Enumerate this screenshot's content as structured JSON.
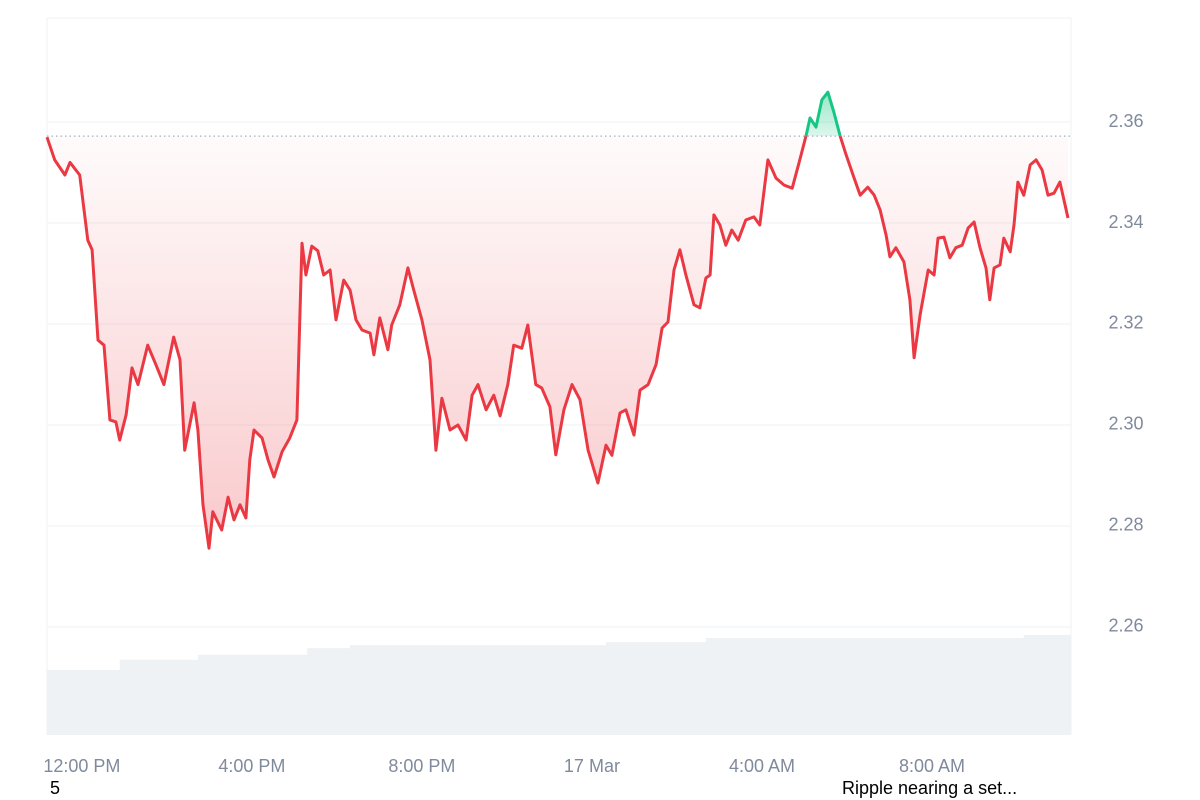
{
  "chart_data": {
    "type": "line",
    "x": [
      -0.82,
      -0.64,
      -0.4,
      -0.28,
      -0.05,
      0.14,
      0.24,
      0.38,
      0.52,
      0.66,
      0.8,
      0.89,
      1.04,
      1.18,
      1.32,
      1.55,
      1.74,
      1.93,
      2.16,
      2.31,
      2.42,
      2.64,
      2.73,
      2.85,
      2.99,
      3.08,
      3.29,
      3.44,
      3.58,
      3.72,
      3.86,
      3.95,
      4.05,
      4.24,
      4.38,
      4.52,
      4.71,
      4.89,
      5.06,
      5.18,
      5.27,
      5.41,
      5.55,
      5.69,
      5.84,
      5.98,
      6.16,
      6.31,
      6.45,
      6.59,
      6.78,
      6.87,
      7.01,
      7.2,
      7.29,
      7.48,
      7.67,
      7.81,
      8.0,
      8.19,
      8.33,
      8.47,
      8.66,
      8.85,
      9.04,
      9.18,
      9.32,
      9.51,
      9.69,
      9.84,
      10.02,
      10.16,
      10.35,
      10.49,
      10.68,
      10.82,
      11.01,
      11.15,
      11.34,
      11.53,
      11.72,
      11.91,
      12.14,
      12.33,
      12.47,
      12.66,
      12.8,
      12.99,
      13.13,
      13.32,
      13.51,
      13.65,
      13.79,
      13.93,
      14.07,
      14.21,
      14.4,
      14.54,
      14.68,
      14.78,
      14.87,
      15.01,
      15.15,
      15.29,
      15.44,
      15.62,
      15.81,
      15.95,
      16.14,
      16.33,
      16.52,
      16.71,
      16.89,
      17.04,
      17.13,
      17.27,
      17.41,
      17.55,
      17.69,
      17.84,
      17.98,
      18.16,
      18.31,
      18.49,
      18.64,
      18.78,
      18.92,
      19.01,
      19.15,
      19.34,
      19.48,
      19.58,
      19.72,
      19.91,
      20.05,
      20.14,
      20.28,
      20.42,
      20.56,
      20.71,
      20.85,
      20.99,
      21.13,
      21.27,
      21.36,
      21.46,
      21.6,
      21.69,
      21.84,
      21.93,
      22.02,
      22.16,
      22.31,
      22.45,
      22.59,
      22.73,
      22.87,
      23.01,
      23.2
    ],
    "values": [
      2.357,
      2.3525,
      2.3495,
      2.352,
      2.3495,
      2.3366,
      2.3347,
      2.3168,
      2.3158,
      2.301,
      2.3006,
      2.297,
      2.302,
      2.3113,
      2.308,
      2.3158,
      2.312,
      2.308,
      2.3174,
      2.3129,
      2.295,
      2.3044,
      2.299,
      2.2842,
      2.2756,
      2.2828,
      2.2792,
      2.2857,
      2.2812,
      2.2842,
      2.2816,
      2.2931,
      2.299,
      2.2974,
      2.2931,
      2.2897,
      2.2947,
      2.2974,
      2.301,
      2.336,
      2.3297,
      2.3354,
      2.3345,
      2.3297,
      2.3307,
      2.3208,
      2.3287,
      2.3267,
      2.3208,
      2.3188,
      2.3182,
      2.3139,
      2.3212,
      2.3149,
      2.3198,
      2.3238,
      2.3311,
      2.3267,
      2.3208,
      2.3129,
      2.295,
      2.3053,
      2.299,
      2.3,
      2.297,
      2.3059,
      2.308,
      2.303,
      2.3059,
      2.3018,
      2.308,
      2.3158,
      2.3152,
      2.3198,
      2.308,
      2.3073,
      2.3036,
      2.2941,
      2.303,
      2.308,
      2.305,
      2.295,
      2.2885,
      2.296,
      2.294,
      2.3024,
      2.303,
      2.298,
      2.3069,
      2.308,
      2.312,
      2.3192,
      2.3204,
      2.3307,
      2.3347,
      2.3297,
      2.3238,
      2.3232,
      2.3291,
      2.3297,
      2.3416,
      2.3396,
      2.3356,
      2.3386,
      2.3366,
      2.3406,
      2.3412,
      2.3396,
      2.3525,
      2.3489,
      2.3475,
      2.3469,
      2.3525,
      2.3574,
      2.3608,
      2.359,
      2.3644,
      2.3659,
      2.362,
      2.3572,
      2.3535,
      2.3491,
      2.3455,
      2.3471,
      2.3455,
      2.3426,
      2.3376,
      2.3333,
      2.3351,
      2.3323,
      2.3248,
      2.3133,
      2.3218,
      2.3307,
      2.3297,
      2.337,
      2.3372,
      2.3331,
      2.3351,
      2.3356,
      2.339,
      2.3402,
      2.3351,
      2.3311,
      2.3248,
      2.3311,
      2.3317,
      2.337,
      2.3343,
      2.3396,
      2.3481,
      2.3455,
      2.3515,
      2.3525,
      2.3505,
      2.3455,
      2.3459,
      2.3481,
      2.341
    ],
    "reference_line": 2.3572,
    "color_below": "#ea3943",
    "color_above": "#16c784",
    "volume": {
      "x": [
        -0.82,
        0.89,
        2.73,
        5.3,
        6.31,
        12.33,
        14.68,
        22.16,
        23.27
      ],
      "values": [
        2.2515,
        2.2535,
        2.2545,
        2.2558,
        2.2564,
        2.257,
        2.2578,
        2.2584,
        2.2584
      ],
      "color": "#eff2f5"
    },
    "xlim": [
      -0.82,
      23.27
    ],
    "ylim": [
      2.2386,
      2.3806
    ],
    "xticks": [
      {
        "value": 0,
        "label": "12:00 PM"
      },
      {
        "value": 4,
        "label": "4:00 PM"
      },
      {
        "value": 8,
        "label": "8:00 PM"
      },
      {
        "value": 12,
        "label": "17 Mar"
      },
      {
        "value": 16,
        "label": "4:00 AM"
      },
      {
        "value": 20,
        "label": "8:00 AM"
      }
    ],
    "yticks": [
      2.26,
      {
        "value": 2.28,
        "label": "2.28"
      },
      {
        "value": 2.3,
        "label": "2.30"
      },
      {
        "value": 2.32,
        "label": "2.32"
      },
      {
        "value": 2.34,
        "label": "2.34"
      },
      {
        "value": 2.36,
        "label": "2.36"
      }
    ],
    "grid": true,
    "annotations": [
      "5",
      "Ripple nearing a set..."
    ]
  }
}
